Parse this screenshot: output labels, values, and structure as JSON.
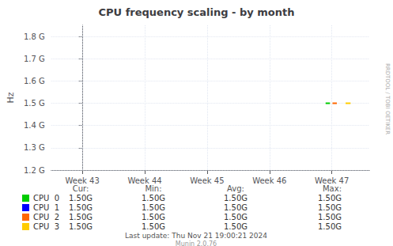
{
  "chart_data": {
    "type": "line",
    "title": "CPU frequency scaling - by month",
    "y_label": "Hz",
    "xlim": [
      -0.5,
      4.6
    ],
    "xticks": [
      {
        "value": 0,
        "label": "Week 43"
      },
      {
        "value": 1,
        "label": "Week 44"
      },
      {
        "value": 2,
        "label": "Week 45"
      },
      {
        "value": 3,
        "label": "Week 46"
      },
      {
        "value": 4,
        "label": "Week 47"
      }
    ],
    "ylim": [
      1200000000,
      1850000000
    ],
    "yticks": [
      {
        "value": 1200000000,
        "label": "1.2 G"
      },
      {
        "value": 1300000000,
        "label": "1.3 G"
      },
      {
        "value": 1400000000,
        "label": "1.4 G"
      },
      {
        "value": 1500000000,
        "label": "1.5 G"
      },
      {
        "value": 1600000000,
        "label": "1.6 G"
      },
      {
        "value": 1700000000,
        "label": "1.7 G"
      },
      {
        "value": 1800000000,
        "label": "1.8 G"
      }
    ],
    "grid": true,
    "legend": "bottom",
    "stats_headers": [
      "Cur:",
      "Min:",
      "Avg:",
      "Max:"
    ],
    "series": [
      {
        "name": "CPU  0",
        "color": "#00cc00",
        "x": [
          3.9,
          3.97
        ],
        "values": [
          1500000000,
          1500000000
        ],
        "stats": [
          1500000000,
          1500000000,
          1500000000,
          1500000000
        ],
        "stats_labels": [
          "1.50G",
          "1.50G",
          "1.50G",
          "1.50G"
        ]
      },
      {
        "name": "CPU  1",
        "color": "#0000ff",
        "x": [],
        "values": [],
        "stats": [
          1500000000,
          1500000000,
          1500000000,
          1500000000
        ],
        "stats_labels": [
          "1.50G",
          "1.50G",
          "1.50G",
          "1.50G"
        ]
      },
      {
        "name": "CPU  2",
        "color": "#ff6600",
        "x": [
          4.01,
          4.08
        ],
        "values": [
          1500000000,
          1500000000
        ],
        "stats": [
          1500000000,
          1500000000,
          1500000000,
          1500000000
        ],
        "stats_labels": [
          "1.50G",
          "1.50G",
          "1.50G",
          "1.50G"
        ]
      },
      {
        "name": "CPU  3",
        "color": "#ffcc00",
        "x": [
          4.22,
          4.3
        ],
        "values": [
          1500000000,
          1500000000
        ],
        "stats": [
          1500000000,
          1500000000,
          1500000000,
          1500000000
        ],
        "stats_labels": [
          "1.50G",
          "1.50G",
          "1.50G",
          "1.50G"
        ]
      }
    ],
    "annotations": [
      "Last update: Thu Nov 21 19:00:21 2024",
      "Munin 2.0.76",
      "RRDTOOL / TOBI OETIKER"
    ]
  }
}
